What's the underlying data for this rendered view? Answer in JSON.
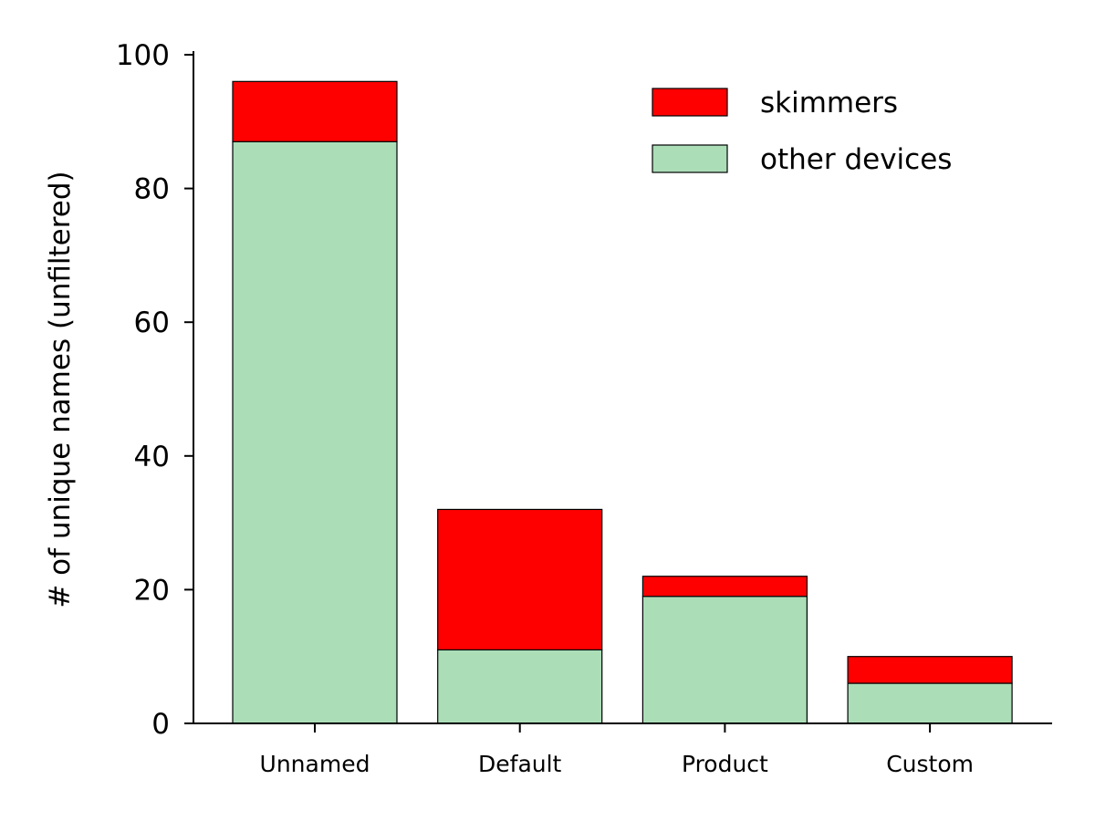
{
  "chart_data": {
    "type": "bar",
    "stacked": true,
    "categories": [
      "Unnamed",
      "Default",
      "Product",
      "Custom"
    ],
    "series": [
      {
        "name": "other devices",
        "values": [
          87,
          11,
          19,
          6
        ],
        "color": "#abddb7"
      },
      {
        "name": "skimmers",
        "values": [
          9,
          21,
          3,
          4
        ],
        "color": "#ff0000"
      }
    ],
    "legend_order": [
      "skimmers",
      "other devices"
    ],
    "title": "",
    "xlabel": "",
    "ylabel": "# of unique names (unfiltered)",
    "ylim": [
      0,
      100
    ],
    "yticks": [
      0,
      20,
      40,
      60,
      80,
      100
    ],
    "grid": false,
    "legend_position": "top-right",
    "edge_color": "#000000"
  }
}
